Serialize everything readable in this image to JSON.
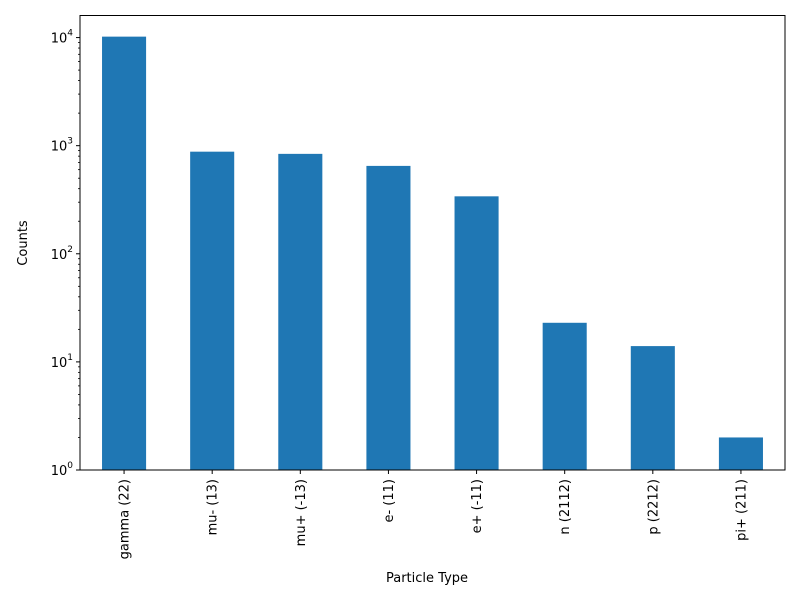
{
  "chart_data": {
    "type": "bar",
    "title": "",
    "xlabel": "Particle Type",
    "ylabel": "Counts",
    "yscale": "log",
    "ylim": [
      1,
      16000
    ],
    "grid": false,
    "legend": "none",
    "categories": [
      "gamma (22)",
      "mu- (13)",
      "mu+ (-13)",
      "e- (11)",
      "e+ (-11)",
      "n (2112)",
      "p (2212)",
      "pi+ (211)"
    ],
    "values": [
      10200,
      880,
      840,
      650,
      340,
      23,
      14,
      2
    ],
    "bar_color": "#1f77b4",
    "y_ticks": [
      {
        "value": 1,
        "base": "10",
        "exp": "0"
      },
      {
        "value": 10,
        "base": "10",
        "exp": "1"
      },
      {
        "value": 100,
        "base": "10",
        "exp": "2"
      },
      {
        "value": 1000,
        "base": "10",
        "exp": "3"
      },
      {
        "value": 10000,
        "base": "10",
        "exp": "4"
      }
    ]
  }
}
